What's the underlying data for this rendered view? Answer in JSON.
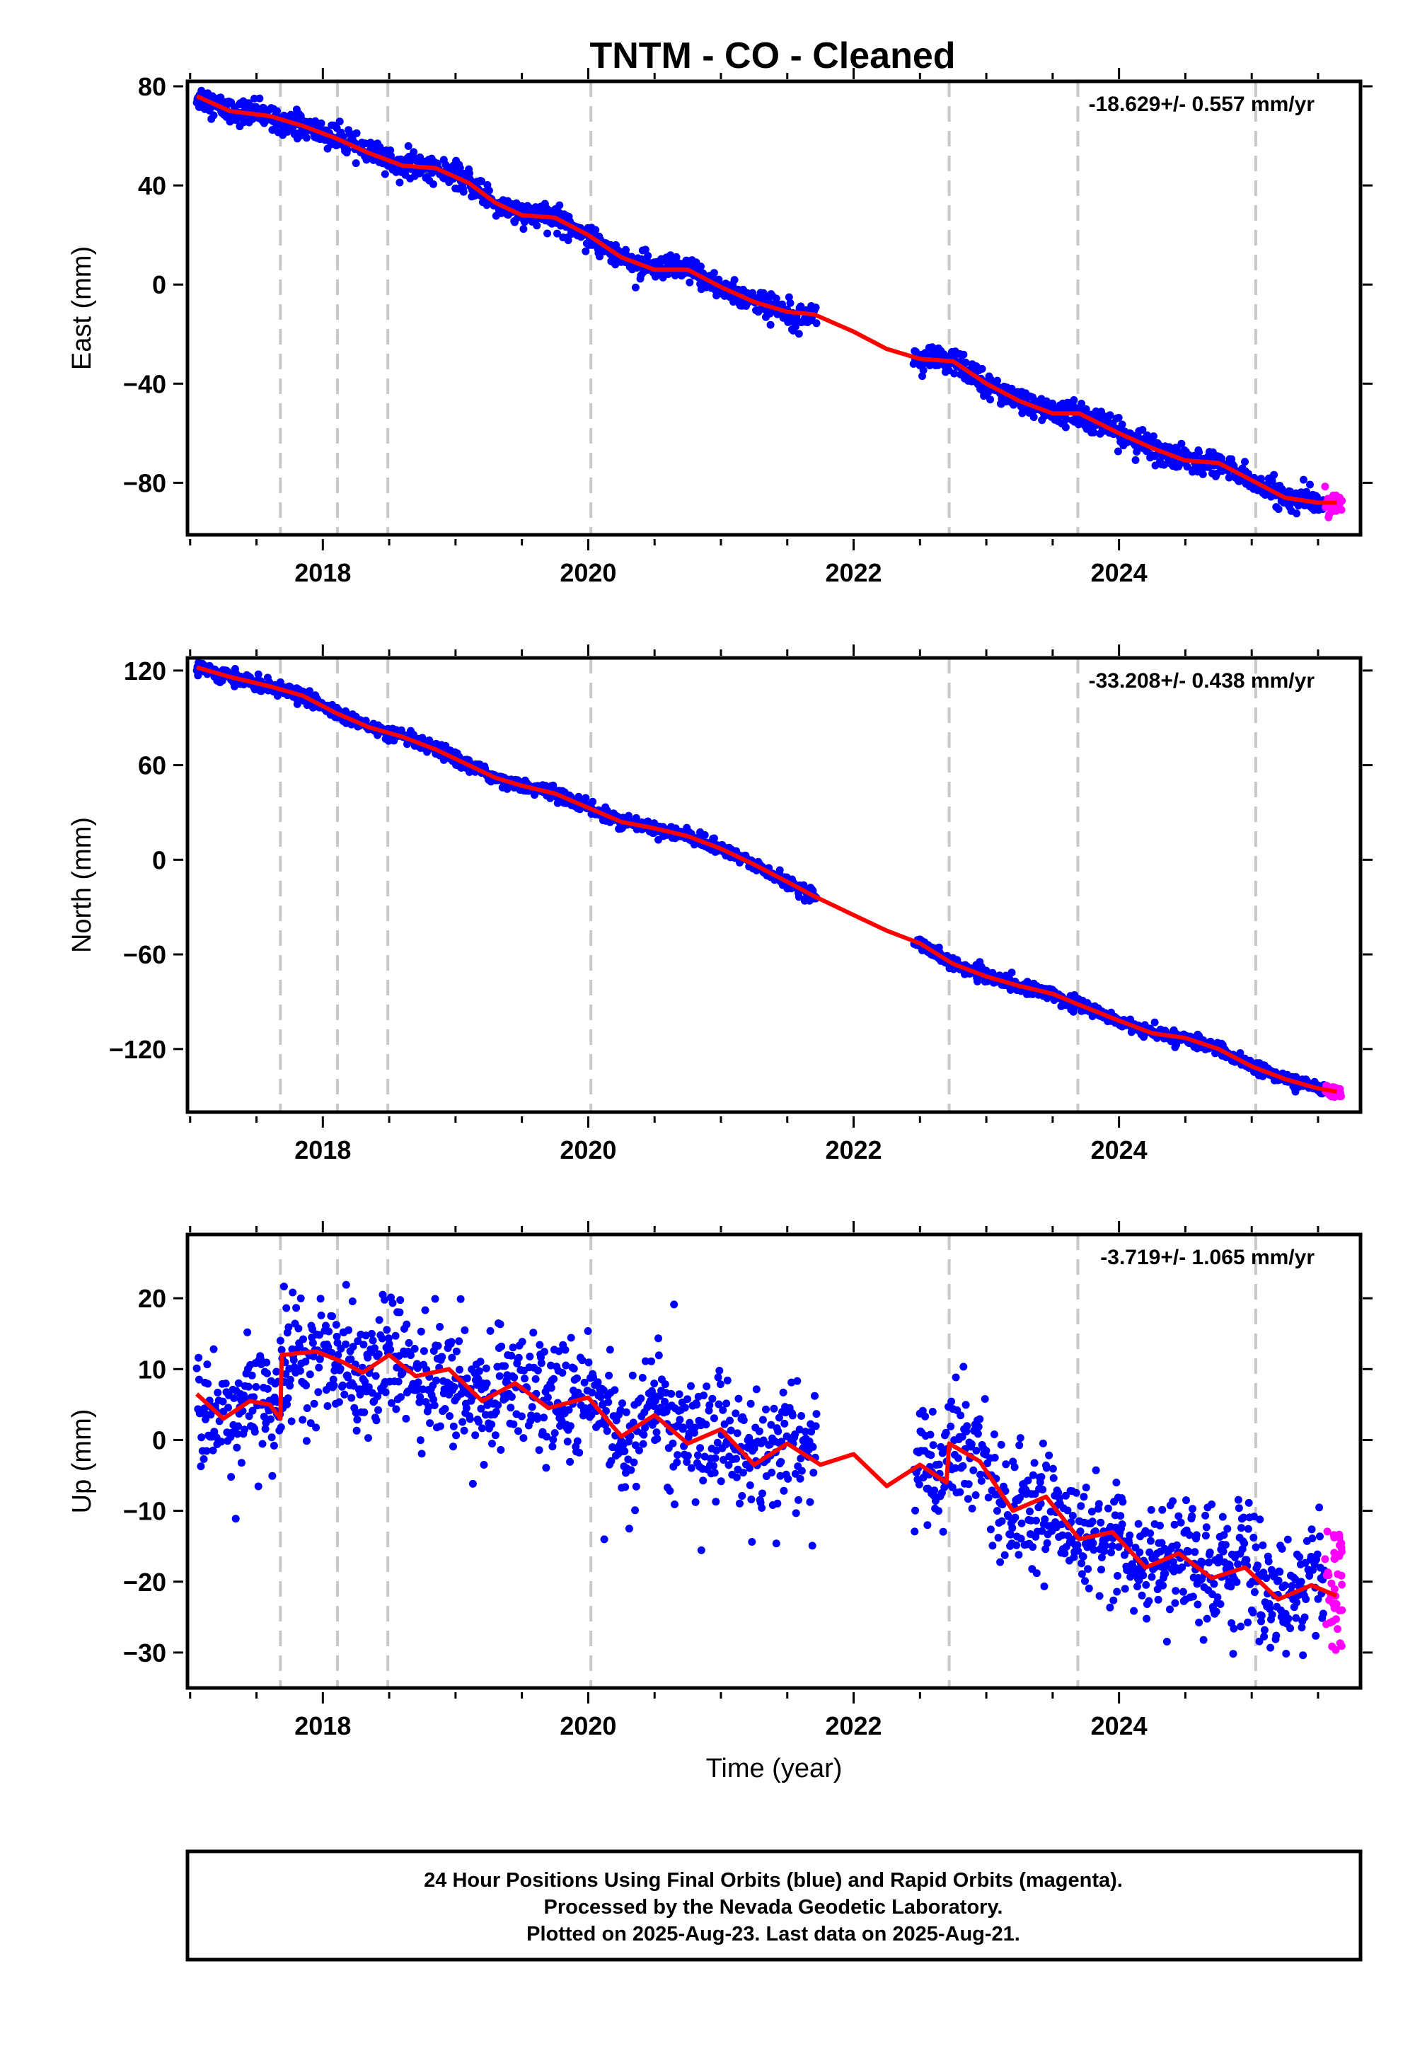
{
  "figure": {
    "title": "TNTM  - CO - Cleaned",
    "footer_lines": [
      "24 Hour Positions Using Final Orbits (blue) and Rapid Orbits (magenta).",
      "Processed by the Nevada Geodetic Laboratory.",
      "Plotted on 2025-Aug-23. Last data on 2025-Aug-21."
    ],
    "colors": {
      "final_orbits": "#0000ff",
      "rapid_orbits": "#ff00ff",
      "model_fit": "#ff0000",
      "event_lines": "#c8c8c8",
      "frame": "#000000"
    },
    "event_lines_years": [
      2017.68,
      2018.11,
      2018.49,
      2020.02,
      2022.72,
      2023.69,
      2025.03
    ]
  },
  "chart_data": [
    {
      "type": "scatter",
      "component": "east",
      "ylabel": "East (mm)",
      "xlabel": "",
      "rate_text": "-18.629+/- 0.557 mm/yr",
      "xlim": [
        2016.98,
        2025.82
      ],
      "ylim": [
        -101,
        82
      ],
      "yticks": [
        80,
        40,
        0,
        -40,
        -80
      ],
      "xticks": [
        2018,
        2020,
        2022,
        2024
      ],
      "grid": false,
      "data_span": [
        2017.05,
        2025.64
      ],
      "gap": [
        2021.72,
        2022.45
      ],
      "rapid_start": 2025.55,
      "noise_mm": 2.5,
      "model": [
        [
          2017.05,
          76
        ],
        [
          2017.3,
          70
        ],
        [
          2017.6,
          68
        ],
        [
          2017.85,
          64
        ],
        [
          2018.1,
          59
        ],
        [
          2018.35,
          53
        ],
        [
          2018.6,
          48
        ],
        [
          2018.85,
          47
        ],
        [
          2019.1,
          41
        ],
        [
          2019.3,
          33
        ],
        [
          2019.5,
          28
        ],
        [
          2019.75,
          27
        ],
        [
          2020.0,
          20
        ],
        [
          2020.25,
          11
        ],
        [
          2020.5,
          6
        ],
        [
          2020.75,
          6
        ],
        [
          2021.0,
          -1
        ],
        [
          2021.25,
          -7
        ],
        [
          2021.5,
          -11
        ],
        [
          2021.7,
          -12
        ],
        [
          2022.0,
          -19
        ],
        [
          2022.25,
          -26
        ],
        [
          2022.5,
          -30
        ],
        [
          2022.75,
          -31
        ],
        [
          2023.0,
          -40
        ],
        [
          2023.25,
          -47
        ],
        [
          2023.5,
          -52
        ],
        [
          2023.7,
          -52
        ],
        [
          2024.0,
          -60
        ],
        [
          2024.25,
          -66
        ],
        [
          2024.5,
          -71
        ],
        [
          2024.75,
          -72
        ],
        [
          2025.0,
          -79
        ],
        [
          2025.25,
          -86
        ],
        [
          2025.5,
          -88
        ],
        [
          2025.64,
          -88
        ]
      ]
    },
    {
      "type": "scatter",
      "component": "north",
      "ylabel": "North (mm)",
      "xlabel": "",
      "rate_text": "-33.208+/- 0.438 mm/yr",
      "xlim": [
        2016.98,
        2025.82
      ],
      "ylim": [
        -160,
        128
      ],
      "yticks": [
        120,
        60,
        0,
        -60,
        -120
      ],
      "xticks": [
        2018,
        2020,
        2022,
        2024
      ],
      "grid": false,
      "data_span": [
        2017.05,
        2025.64
      ],
      "gap": [
        2021.72,
        2022.45
      ],
      "rapid_start": 2025.55,
      "noise_mm": 2.0,
      "model": [
        [
          2017.05,
          122
        ],
        [
          2017.3,
          116
        ],
        [
          2017.6,
          110
        ],
        [
          2017.85,
          104
        ],
        [
          2018.1,
          93
        ],
        [
          2018.35,
          84
        ],
        [
          2018.6,
          78
        ],
        [
          2018.85,
          70
        ],
        [
          2019.1,
          60
        ],
        [
          2019.3,
          52
        ],
        [
          2019.5,
          47
        ],
        [
          2019.75,
          42
        ],
        [
          2020.0,
          33
        ],
        [
          2020.25,
          24
        ],
        [
          2020.5,
          20
        ],
        [
          2020.75,
          15
        ],
        [
          2021.0,
          7
        ],
        [
          2021.25,
          -3
        ],
        [
          2021.5,
          -14
        ],
        [
          2021.7,
          -23
        ],
        [
          2022.0,
          -35
        ],
        [
          2022.25,
          -45
        ],
        [
          2022.5,
          -53
        ],
        [
          2022.75,
          -66
        ],
        [
          2023.0,
          -74
        ],
        [
          2023.25,
          -80
        ],
        [
          2023.5,
          -85
        ],
        [
          2023.7,
          -92
        ],
        [
          2024.0,
          -102
        ],
        [
          2024.25,
          -110
        ],
        [
          2024.5,
          -113
        ],
        [
          2024.75,
          -120
        ],
        [
          2025.0,
          -131
        ],
        [
          2025.25,
          -139
        ],
        [
          2025.5,
          -145
        ],
        [
          2025.64,
          -147
        ]
      ]
    },
    {
      "type": "scatter",
      "component": "up",
      "ylabel": "Up (mm)",
      "xlabel": "Time (year)",
      "rate_text": "-3.719+/- 1.065 mm/yr",
      "xlim": [
        2016.98,
        2025.82
      ],
      "ylim": [
        -35,
        29
      ],
      "yticks": [
        20,
        10,
        0,
        -10,
        -20,
        -30
      ],
      "xticks": [
        2018,
        2020,
        2022,
        2024
      ],
      "grid": false,
      "data_span": [
        2017.05,
        2025.64
      ],
      "gap": [
        2021.72,
        2022.45
      ],
      "rapid_start": 2025.55,
      "noise_mm": 4.0,
      "model": [
        [
          2017.05,
          6.5
        ],
        [
          2017.25,
          3.0
        ],
        [
          2017.45,
          5.5
        ],
        [
          2017.6,
          5.0
        ],
        [
          2017.68,
          3.0
        ],
        [
          2017.69,
          12.0
        ],
        [
          2017.95,
          12.5
        ],
        [
          2018.15,
          11.0
        ],
        [
          2018.3,
          9.5
        ],
        [
          2018.5,
          12.0
        ],
        [
          2018.7,
          9.0
        ],
        [
          2018.95,
          10.0
        ],
        [
          2019.2,
          5.5
        ],
        [
          2019.45,
          8.0
        ],
        [
          2019.7,
          4.5
        ],
        [
          2020.0,
          6.0
        ],
        [
          2020.25,
          0.5
        ],
        [
          2020.5,
          3.5
        ],
        [
          2020.75,
          -0.5
        ],
        [
          2021.0,
          1.5
        ],
        [
          2021.25,
          -3.5
        ],
        [
          2021.5,
          -0.5
        ],
        [
          2021.75,
          -3.5
        ],
        [
          2022.0,
          -2.0
        ],
        [
          2022.25,
          -6.5
        ],
        [
          2022.5,
          -3.5
        ],
        [
          2022.7,
          -6.0
        ],
        [
          2022.72,
          -0.5
        ],
        [
          2022.95,
          -3.0
        ],
        [
          2023.2,
          -10.0
        ],
        [
          2023.45,
          -8.0
        ],
        [
          2023.7,
          -14.0
        ],
        [
          2023.95,
          -13.0
        ],
        [
          2024.2,
          -18.0
        ],
        [
          2024.45,
          -16.0
        ],
        [
          2024.7,
          -19.5
        ],
        [
          2024.95,
          -18.0
        ],
        [
          2025.2,
          -22.5
        ],
        [
          2025.45,
          -20.5
        ],
        [
          2025.64,
          -22.0
        ]
      ]
    }
  ]
}
